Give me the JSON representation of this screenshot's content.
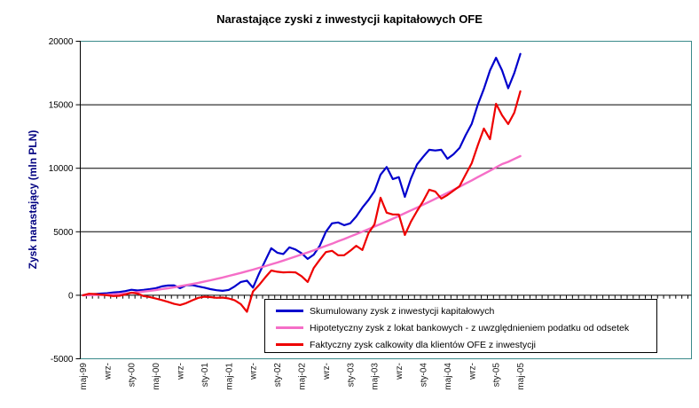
{
  "chart_data": {
    "type": "line",
    "title": "Narastające zyski z inwestycji kapitałowych OFE",
    "ylabel": "Zysk narastający (mln PLN)",
    "ylim": [
      -5000,
      20000
    ],
    "grid": "horizontal",
    "legend_position": "inside-bottom",
    "plot_border_color": "#3A8A8A",
    "gridline_color": "#000000",
    "x_tick_labels": [
      "maj-99",
      "wrz-",
      "sty-00",
      "maj-00",
      "wrz-",
      "sty-01",
      "maj-01",
      "wrz-",
      "sty-02",
      "maj-02",
      "wrz-",
      "sty-03",
      "maj-03",
      "wrz-",
      "sty-04",
      "maj-04",
      "wrz-",
      "sty-05",
      "maj-05"
    ],
    "x_tick_step_months": 4,
    "x_note": "73 monthly points from maj-99 to maj-05; axis ticks continue beyond last data point",
    "y_ticks": [
      {
        "label": "20000",
        "value": 20000
      },
      {
        "label": "15000",
        "value": 15000
      },
      {
        "label": "10000",
        "value": 10000
      },
      {
        "label": "5000",
        "value": 5000
      },
      {
        "label": "0",
        "value": 0
      },
      {
        "label": "-5000",
        "value": -5000
      }
    ],
    "series": [
      {
        "name": "Skumulowany zysk z inwestycji kapitałowych",
        "color": "#0000CC",
        "width": 2.2,
        "values": [
          0,
          60,
          100,
          130,
          160,
          220,
          260,
          330,
          430,
          380,
          420,
          480,
          560,
          700,
          770,
          780,
          560,
          790,
          800,
          700,
          600,
          480,
          400,
          350,
          420,
          700,
          1050,
          1150,
          600,
          1700,
          2700,
          3700,
          3350,
          3250,
          3770,
          3600,
          3300,
          2860,
          3200,
          3900,
          5000,
          5660,
          5730,
          5520,
          5660,
          6200,
          6900,
          7500,
          8200,
          9500,
          10100,
          9150,
          9300,
          7750,
          9200,
          10300,
          10900,
          11450,
          11400,
          11450,
          10750,
          11100,
          11600,
          12600,
          13500,
          15000,
          16250,
          17700,
          18700,
          17700,
          16300,
          17500,
          19000
        ]
      },
      {
        "name": "Hipotetyczny zysk z lokat bankowych - z uwzględnieniem podatku od odsetek",
        "color": "#F56EC7",
        "width": 2.4,
        "values": [
          0,
          10,
          20,
          30,
          50,
          80,
          110,
          150,
          190,
          240,
          290,
          350,
          410,
          480,
          550,
          630,
          710,
          800,
          890,
          980,
          1080,
          1180,
          1290,
          1400,
          1520,
          1640,
          1760,
          1890,
          2020,
          2160,
          2290,
          2440,
          2580,
          2730,
          2890,
          3050,
          3210,
          3370,
          3540,
          3710,
          3890,
          4060,
          4250,
          4430,
          4620,
          4810,
          5010,
          5200,
          5410,
          5610,
          5820,
          6030,
          6240,
          6460,
          6680,
          6900,
          7130,
          7360,
          7590,
          7830,
          8060,
          8300,
          8550,
          8800,
          9040,
          9300,
          9550,
          9810,
          10070,
          10330,
          10500,
          10730,
          10960
        ]
      },
      {
        "name": "Faktyczny zysk calkowity dla klientów OFE z inwestycji",
        "color": "#EE0000",
        "width": 2.2,
        "values": [
          0,
          120,
          100,
          50,
          0,
          -60,
          -40,
          60,
          210,
          130,
          -60,
          -140,
          -260,
          -380,
          -520,
          -680,
          -770,
          -620,
          -400,
          -200,
          -120,
          -150,
          -200,
          -180,
          -250,
          -400,
          -700,
          -1300,
          300,
          800,
          1400,
          1950,
          1850,
          1800,
          1820,
          1800,
          1500,
          1050,
          2150,
          2800,
          3400,
          3500,
          3150,
          3150,
          3500,
          3900,
          3560,
          4890,
          5590,
          7680,
          6500,
          6360,
          6360,
          4750,
          5800,
          6630,
          7400,
          8310,
          8170,
          7610,
          7890,
          8240,
          8590,
          9500,
          10400,
          11800,
          13130,
          12290,
          15080,
          14170,
          13475,
          14380,
          16060
        ]
      }
    ]
  }
}
